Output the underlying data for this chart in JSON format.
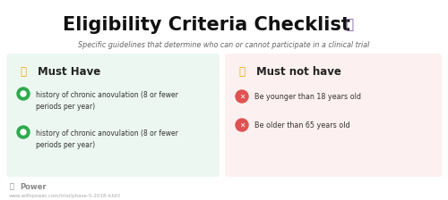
{
  "title": "Eligibility Criteria Checklist",
  "subtitle": "Specific guidelines that determine who can or cannot participate in a clinical trial",
  "left_panel": {
    "header": "Must Have",
    "bg_color": "#edf7f1",
    "items": [
      "history of chronic anovulation (8 or fewer\nperiods per year)",
      "history of chronic anovulation (8 or fewer\nperiods per year)"
    ],
    "item_icon_color": "#2daa4e",
    "item_dot_inner": "#ffffff"
  },
  "right_panel": {
    "header": "Must not have",
    "bg_color": "#fdf0f0",
    "items": [
      "Be younger than 18 years old",
      "Be older than 65 years old"
    ],
    "item_icon_color": "#e05252"
  },
  "bg_color": "#ffffff",
  "title_color": "#111111",
  "subtitle_color": "#666666",
  "footer_text": "Power",
  "footer_url": "www.withpower.com/trial/phase-5-2018-lctd3",
  "clipboard_color": "#7b5ea7",
  "thumbs_up_color": "#f0a500",
  "thumbs_down_color": "#f0a500",
  "header_text_color": "#222222",
  "item_text_color": "#333333"
}
